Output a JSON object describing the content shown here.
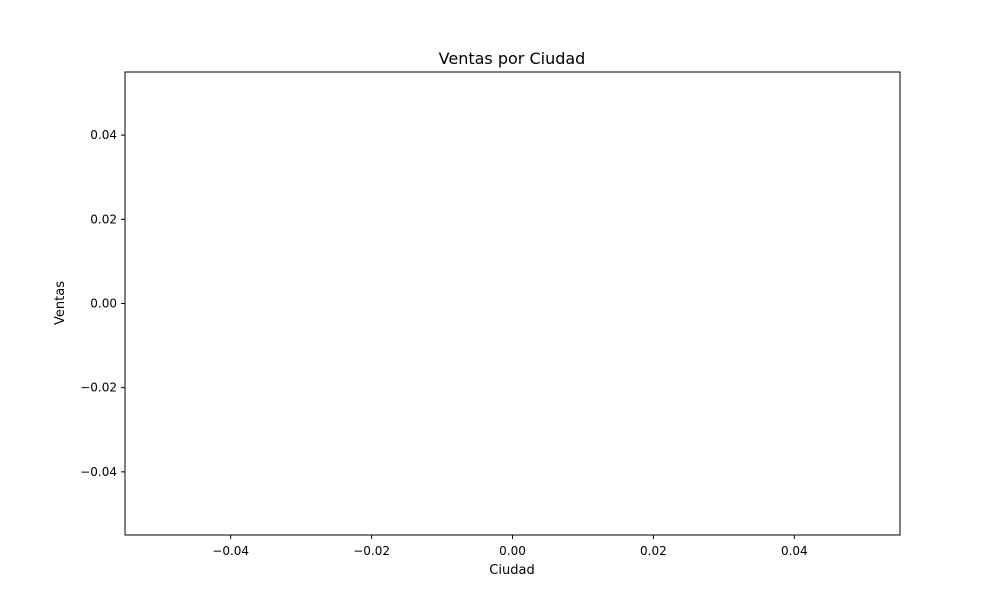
{
  "chart_data": {
    "type": "bar",
    "title": "Ventas por Ciudad",
    "xlabel": "Ciudad",
    "ylabel": "Ventas",
    "categories": [],
    "values": [],
    "xlim": [
      -0.055,
      0.055
    ],
    "ylim": [
      -0.055,
      0.055
    ],
    "xticks": [
      -0.04,
      -0.02,
      0.0,
      0.02,
      0.04
    ],
    "xtick_labels": [
      "−0.04",
      "−0.02",
      "0.00",
      "0.02",
      "0.04"
    ],
    "yticks": [
      -0.04,
      -0.02,
      0.0,
      0.02,
      0.04
    ],
    "ytick_labels": [
      "−0.04",
      "−0.02",
      "0.00",
      "0.02",
      "0.04"
    ],
    "grid": false,
    "legend": "none",
    "colors": {
      "axis": "#000000",
      "background": "#ffffff"
    }
  }
}
